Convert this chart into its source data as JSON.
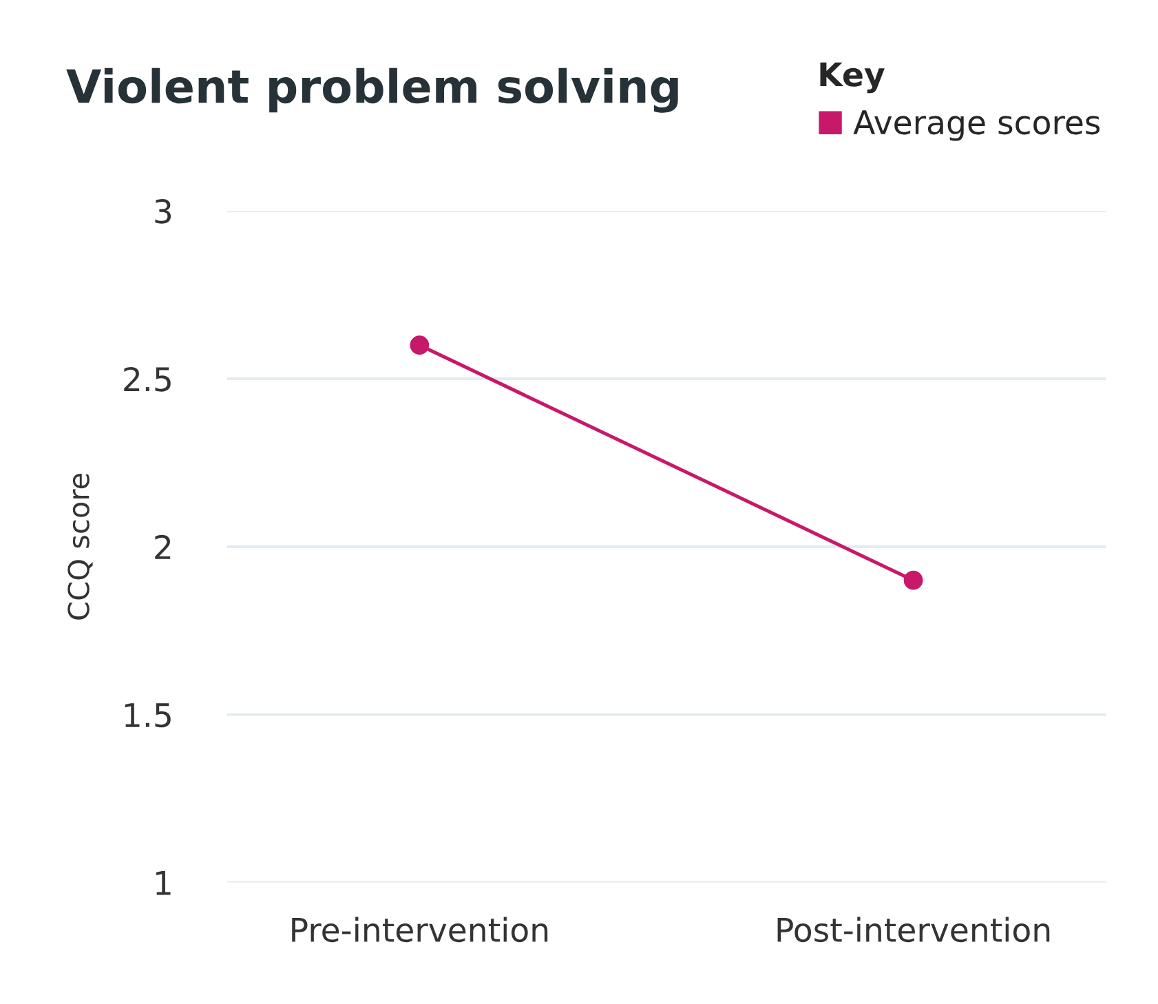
{
  "chart_data": {
    "type": "line",
    "title": "Violent problem solving",
    "ylabel": "CCQ score",
    "legend_title": "Key",
    "categories": [
      "Pre-intervention",
      "Post-intervention"
    ],
    "series": [
      {
        "name": "Average scores",
        "color": "#c8186a",
        "values": [
          2.6,
          1.9
        ]
      }
    ],
    "ylim": [
      1,
      3
    ],
    "yticks": [
      1,
      1.5,
      2,
      2.5,
      3
    ],
    "grid": "y",
    "legend": "top right",
    "marker": "circle",
    "line_style": "solid"
  }
}
